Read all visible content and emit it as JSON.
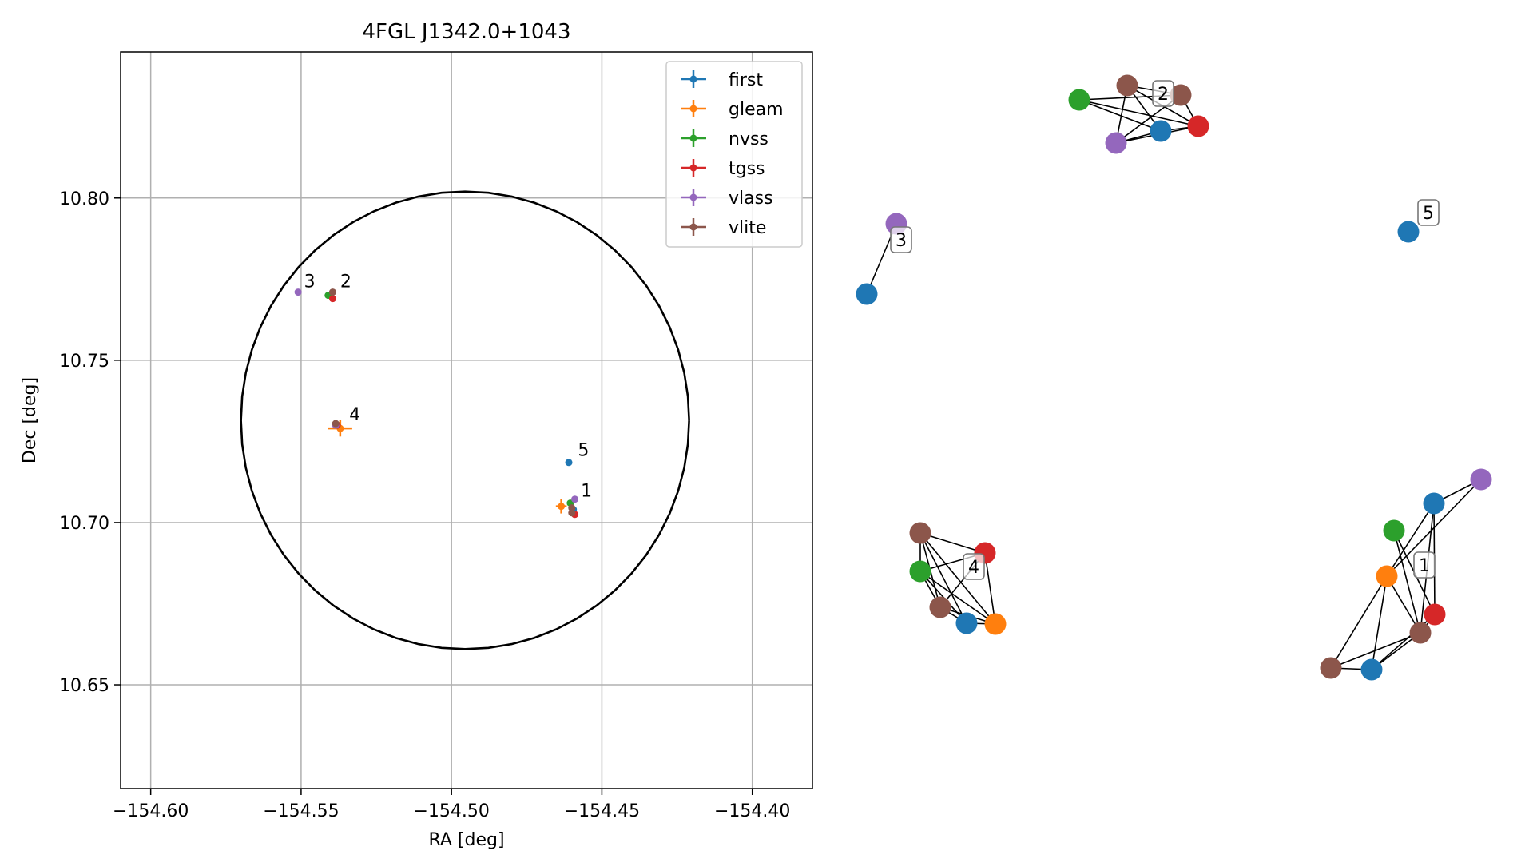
{
  "chart_data": [
    {
      "type": "scatter",
      "title": "4FGL J1342.0+1043",
      "xlabel": "RA [deg]",
      "ylabel": "Dec [deg]",
      "xlim": [
        -154.61,
        -154.38
      ],
      "ylim": [
        10.618,
        10.845
      ],
      "xticks": [
        -154.6,
        -154.55,
        -154.5,
        -154.45,
        -154.4
      ],
      "xtick_labels": [
        "−154.60",
        "−154.55",
        "−154.50",
        "−154.45",
        "−154.40"
      ],
      "yticks": [
        10.65,
        10.7,
        10.75,
        10.8
      ],
      "ytick_labels": [
        "10.65",
        "10.70",
        "10.75",
        "10.80"
      ],
      "grid": true,
      "legend_position": "top-right",
      "legend": [
        "first",
        "gleam",
        "nvss",
        "tgss",
        "vlass",
        "vlite"
      ],
      "colors": {
        "first": "#1f77b4",
        "gleam": "#ff7f0e",
        "nvss": "#2ca02c",
        "tgss": "#d62728",
        "vlass": "#9467bd",
        "vlite": "#8c564b"
      },
      "circle": {
        "center": [
          -154.4955,
          10.7315
        ],
        "ra_radius": 0.0745,
        "dec_radius": 0.0705
      },
      "series": [
        {
          "name": "first",
          "points": [
            {
              "x": -154.461,
              "y": 10.7185,
              "xerr": 0.0004,
              "yerr": 0.0004
            },
            {
              "x": -154.4595,
              "y": 10.704,
              "xerr": 0.0004,
              "yerr": 0.0004
            }
          ]
        },
        {
          "name": "gleam",
          "points": [
            {
              "x": -154.4635,
              "y": 10.705,
              "xerr": 0.0018,
              "yerr": 0.0022
            },
            {
              "x": -154.537,
              "y": 10.729,
              "xerr": 0.004,
              "yerr": 0.0025
            }
          ]
        },
        {
          "name": "nvss",
          "points": [
            {
              "x": -154.541,
              "y": 10.77,
              "xerr": 0.0007,
              "yerr": 0.0007
            },
            {
              "x": -154.4605,
              "y": 10.706,
              "xerr": 0.0007,
              "yerr": 0.0007
            },
            {
              "x": -154.538,
              "y": 10.73,
              "xerr": 0.0007,
              "yerr": 0.0007
            }
          ]
        },
        {
          "name": "tgss",
          "points": [
            {
              "x": -154.5395,
              "y": 10.769,
              "xerr": 0.0007,
              "yerr": 0.0007
            },
            {
              "x": -154.459,
              "y": 10.7025,
              "xerr": 0.0007,
              "yerr": 0.0007
            },
            {
              "x": -154.538,
              "y": 10.73,
              "xerr": 0.0007,
              "yerr": 0.0007
            }
          ]
        },
        {
          "name": "vlass",
          "points": [
            {
              "x": -154.551,
              "y": 10.771,
              "xerr": 0.0005,
              "yerr": 0.0005
            },
            {
              "x": -154.459,
              "y": 10.7072,
              "xerr": 0.0005,
              "yerr": 0.0005
            },
            {
              "x": -154.5385,
              "y": 10.73,
              "xerr": 0.0005,
              "yerr": 0.0005
            }
          ]
        },
        {
          "name": "vlite",
          "points": [
            {
              "x": -154.5395,
              "y": 10.771,
              "xerr": 0.0007,
              "yerr": 0.0007
            },
            {
              "x": -154.5385,
              "y": 10.7305,
              "xerr": 0.0007,
              "yerr": 0.0007
            },
            {
              "x": -154.46,
              "y": 10.7045,
              "xerr": 0.0007,
              "yerr": 0.0007
            },
            {
              "x": -154.46,
              "y": 10.703,
              "xerr": 0.0007,
              "yerr": 0.0007
            }
          ]
        }
      ],
      "annotations": [
        {
          "text": "1",
          "x": -154.457,
          "y": 10.708
        },
        {
          "text": "2",
          "x": -154.537,
          "y": 10.7725
        },
        {
          "text": "3",
          "x": -154.549,
          "y": 10.7725
        },
        {
          "text": "4",
          "x": -154.534,
          "y": 10.7315
        },
        {
          "text": "5",
          "x": -154.458,
          "y": 10.7205
        }
      ]
    },
    {
      "type": "network",
      "clusters": [
        {
          "label": "1"
        },
        {
          "label": "2"
        },
        {
          "label": "3"
        },
        {
          "label": "4"
        },
        {
          "label": "5"
        }
      ]
    }
  ]
}
